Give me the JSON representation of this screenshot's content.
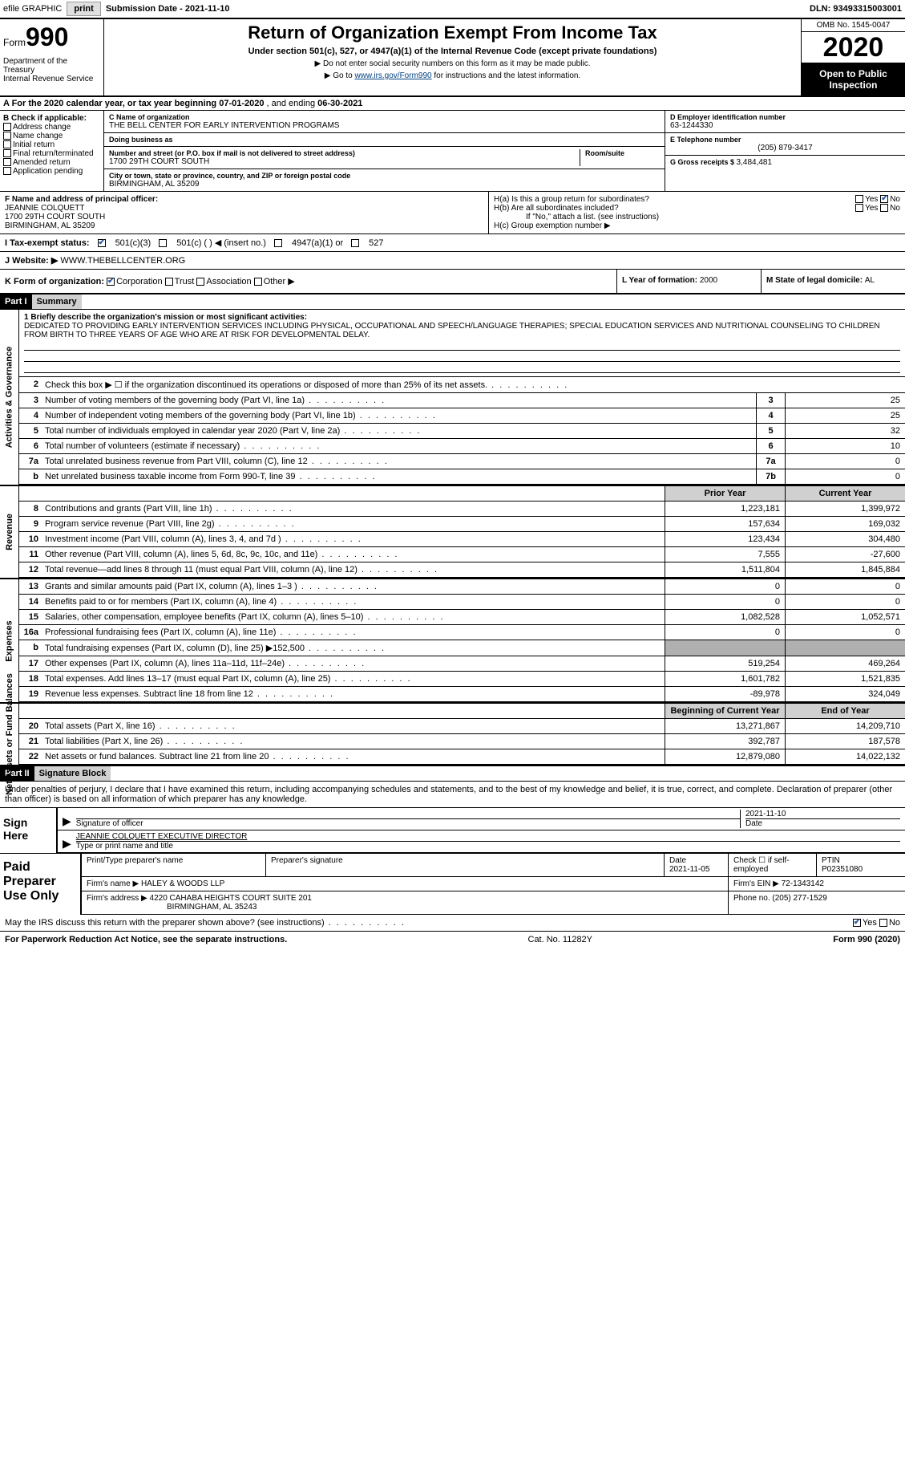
{
  "topbar": {
    "efile": "efile GRAPHIC",
    "print": "print",
    "sub_date_label": "Submission Date - ",
    "sub_date": "2021-11-10",
    "dln": "DLN: 93493315003001"
  },
  "header": {
    "form_label": "Form",
    "form_number": "990",
    "dept": "Department of the Treasury\nInternal Revenue Service",
    "title": "Return of Organization Exempt From Income Tax",
    "subtitle": "Under section 501(c), 527, or 4947(a)(1) of the Internal Revenue Code (except private foundations)",
    "note1": "▶ Do not enter social security numbers on this form as it may be made public.",
    "note2_pre": "▶ Go to ",
    "note2_link": "www.irs.gov/Form990",
    "note2_post": " for instructions and the latest information.",
    "omb": "OMB No. 1545-0047",
    "year": "2020",
    "open": "Open to Public Inspection"
  },
  "period": {
    "prefix": "A For the 2020 calendar year, or tax year beginning ",
    "begin": "07-01-2020",
    "mid": " , and ending ",
    "end": "06-30-2021"
  },
  "colB": {
    "hdr": "B Check if applicable:",
    "items": [
      "Address change",
      "Name change",
      "Initial return",
      "Final return/terminated",
      "Amended return",
      "Application pending"
    ]
  },
  "colC": {
    "name_lbl": "C Name of organization",
    "name": "THE BELL CENTER FOR EARLY INTERVENTION PROGRAMS",
    "dba_lbl": "Doing business as",
    "addr_lbl": "Number and street (or P.O. box if mail is not delivered to street address)",
    "room_lbl": "Room/suite",
    "addr": "1700 29TH COURT SOUTH",
    "city_lbl": "City or town, state or province, country, and ZIP or foreign postal code",
    "city": "BIRMINGHAM, AL  35209"
  },
  "colD": {
    "ein_lbl": "D Employer identification number",
    "ein": "63-1244330",
    "tel_lbl": "E Telephone number",
    "tel": "(205) 879-3417",
    "gross_lbl": "G Gross receipts $ ",
    "gross": "3,484,481"
  },
  "rowF": {
    "lbl": "F Name and address of principal officer:",
    "name": "JEANNIE COLQUETT",
    "addr1": "1700 29TH COURT SOUTH",
    "addr2": "BIRMINGHAM, AL  35209"
  },
  "rowH": {
    "ha": "H(a)  Is this a group return for subordinates?",
    "hb": "H(b)  Are all subordinates included?",
    "hb_note": "If \"No,\" attach a list. (see instructions)",
    "hc": "H(c)  Group exemption number ▶",
    "yes": "Yes",
    "no": "No"
  },
  "taxstatus": {
    "lbl": "I   Tax-exempt status:",
    "i1": "501(c)(3)",
    "i2": "501(c) (  ) ◀ (insert no.)",
    "i3": "4947(a)(1) or",
    "i4": "527"
  },
  "website": {
    "lbl": "J   Website: ▶ ",
    "val": "WWW.THEBELLCENTER.ORG"
  },
  "rowK": {
    "lbl": "K Form of organization:",
    "corp": "Corporation",
    "trust": "Trust",
    "assoc": "Association",
    "other": "Other ▶",
    "year_lbl": "L Year of formation: ",
    "year": "2000",
    "state_lbl": "M State of legal domicile: ",
    "state": "AL"
  },
  "part1_hdr": "Part I",
  "part1_title": "Summary",
  "mission": {
    "lbl": "1   Briefly describe the organization's mission or most significant activities:",
    "text": "DEDICATED TO PROVIDING EARLY INTERVENTION SERVICES INCLUDING PHYSICAL, OCCUPATIONAL AND SPEECH/LANGUAGE THERAPIES; SPECIAL EDUCATION SERVICES AND NUTRITIONAL COUNSELING TO CHILDREN FROM BIRTH TO THREE YEARS OF AGE WHO ARE AT RISK FOR DEVELOPMENTAL DELAY."
  },
  "side_labels": {
    "ag": "Activities & Governance",
    "rev": "Revenue",
    "exp": "Expenses",
    "na": "Net Assets or Fund Balances"
  },
  "gov_rows": [
    {
      "n": "2",
      "d": "Check this box ▶ ☐  if the organization discontinued its operations or disposed of more than 25% of its net assets.",
      "box": "",
      "v": ""
    },
    {
      "n": "3",
      "d": "Number of voting members of the governing body (Part VI, line 1a)",
      "box": "3",
      "v": "25"
    },
    {
      "n": "4",
      "d": "Number of independent voting members of the governing body (Part VI, line 1b)",
      "box": "4",
      "v": "25"
    },
    {
      "n": "5",
      "d": "Total number of individuals employed in calendar year 2020 (Part V, line 2a)",
      "box": "5",
      "v": "32"
    },
    {
      "n": "6",
      "d": "Total number of volunteers (estimate if necessary)",
      "box": "6",
      "v": "10"
    },
    {
      "n": "7a",
      "d": "Total unrelated business revenue from Part VIII, column (C), line 12",
      "box": "7a",
      "v": "0"
    },
    {
      "n": "b",
      "d": "Net unrelated business taxable income from Form 990-T, line 39",
      "box": "7b",
      "v": "0"
    }
  ],
  "two_col_hdr": {
    "prior": "Prior Year",
    "curr": "Current Year"
  },
  "rev_rows": [
    {
      "n": "8",
      "d": "Contributions and grants (Part VIII, line 1h)",
      "p": "1,223,181",
      "c": "1,399,972"
    },
    {
      "n": "9",
      "d": "Program service revenue (Part VIII, line 2g)",
      "p": "157,634",
      "c": "169,032"
    },
    {
      "n": "10",
      "d": "Investment income (Part VIII, column (A), lines 3, 4, and 7d )",
      "p": "123,434",
      "c": "304,480"
    },
    {
      "n": "11",
      "d": "Other revenue (Part VIII, column (A), lines 5, 6d, 8c, 9c, 10c, and 11e)",
      "p": "7,555",
      "c": "-27,600"
    },
    {
      "n": "12",
      "d": "Total revenue—add lines 8 through 11 (must equal Part VIII, column (A), line 12)",
      "p": "1,511,804",
      "c": "1,845,884"
    }
  ],
  "exp_rows": [
    {
      "n": "13",
      "d": "Grants and similar amounts paid (Part IX, column (A), lines 1–3 )",
      "p": "0",
      "c": "0"
    },
    {
      "n": "14",
      "d": "Benefits paid to or for members (Part IX, column (A), line 4)",
      "p": "0",
      "c": "0"
    },
    {
      "n": "15",
      "d": "Salaries, other compensation, employee benefits (Part IX, column (A), lines 5–10)",
      "p": "1,082,528",
      "c": "1,052,571"
    },
    {
      "n": "16a",
      "d": "Professional fundraising fees (Part IX, column (A), line 11e)",
      "p": "0",
      "c": "0"
    },
    {
      "n": "b",
      "d": "Total fundraising expenses (Part IX, column (D), line 25) ▶152,500",
      "p": "shade",
      "c": "shade"
    },
    {
      "n": "17",
      "d": "Other expenses (Part IX, column (A), lines 11a–11d, 11f–24e)",
      "p": "519,254",
      "c": "469,264"
    },
    {
      "n": "18",
      "d": "Total expenses. Add lines 13–17 (must equal Part IX, column (A), line 25)",
      "p": "1,601,782",
      "c": "1,521,835"
    },
    {
      "n": "19",
      "d": "Revenue less expenses. Subtract line 18 from line 12",
      "p": "-89,978",
      "c": "324,049"
    }
  ],
  "na_hdr": {
    "beg": "Beginning of Current Year",
    "end": "End of Year"
  },
  "na_rows": [
    {
      "n": "20",
      "d": "Total assets (Part X, line 16)",
      "p": "13,271,867",
      "c": "14,209,710"
    },
    {
      "n": "21",
      "d": "Total liabilities (Part X, line 26)",
      "p": "392,787",
      "c": "187,578"
    },
    {
      "n": "22",
      "d": "Net assets or fund balances. Subtract line 21 from line 20",
      "p": "12,879,080",
      "c": "14,022,132"
    }
  ],
  "part2_hdr": "Part II",
  "part2_title": "Signature Block",
  "sig_decl": "Under penalties of perjury, I declare that I have examined this return, including accompanying schedules and statements, and to the best of my knowledge and belief, it is true, correct, and complete. Declaration of preparer (other than officer) is based on all information of which preparer has any knowledge.",
  "sign_here": "Sign Here",
  "sig": {
    "sig_lbl": "Signature of officer",
    "date_lbl": "Date",
    "date": "2021-11-10",
    "name": "JEANNIE COLQUETT  EXECUTIVE DIRECTOR",
    "name_lbl": "Type or print name and title"
  },
  "prep_lbl": "Paid Preparer Use Only",
  "prep": {
    "h1": "Print/Type preparer's name",
    "h2": "Preparer's signature",
    "h3": "Date",
    "h4": "Check ☐ if self-employed",
    "h5": "PTIN",
    "date": "2021-11-05",
    "ptin": "P02351080",
    "firm_lbl": "Firm's name   ▶ ",
    "firm": "HALEY & WOODS LLP",
    "ein_lbl": "Firm's EIN ▶ ",
    "ein": "72-1343142",
    "addr_lbl": "Firm's address ▶ ",
    "addr1": "4220 CAHABA HEIGHTS COURT SUITE 201",
    "addr2": "BIRMINGHAM, AL  35243",
    "phone_lbl": "Phone no. ",
    "phone": "(205) 277-1529"
  },
  "discuss": "May the IRS discuss this return with the preparer shown above? (see instructions)",
  "footer": {
    "left": "For Paperwork Reduction Act Notice, see the separate instructions.",
    "mid": "Cat. No. 11282Y",
    "right": "Form 990 (2020)"
  }
}
